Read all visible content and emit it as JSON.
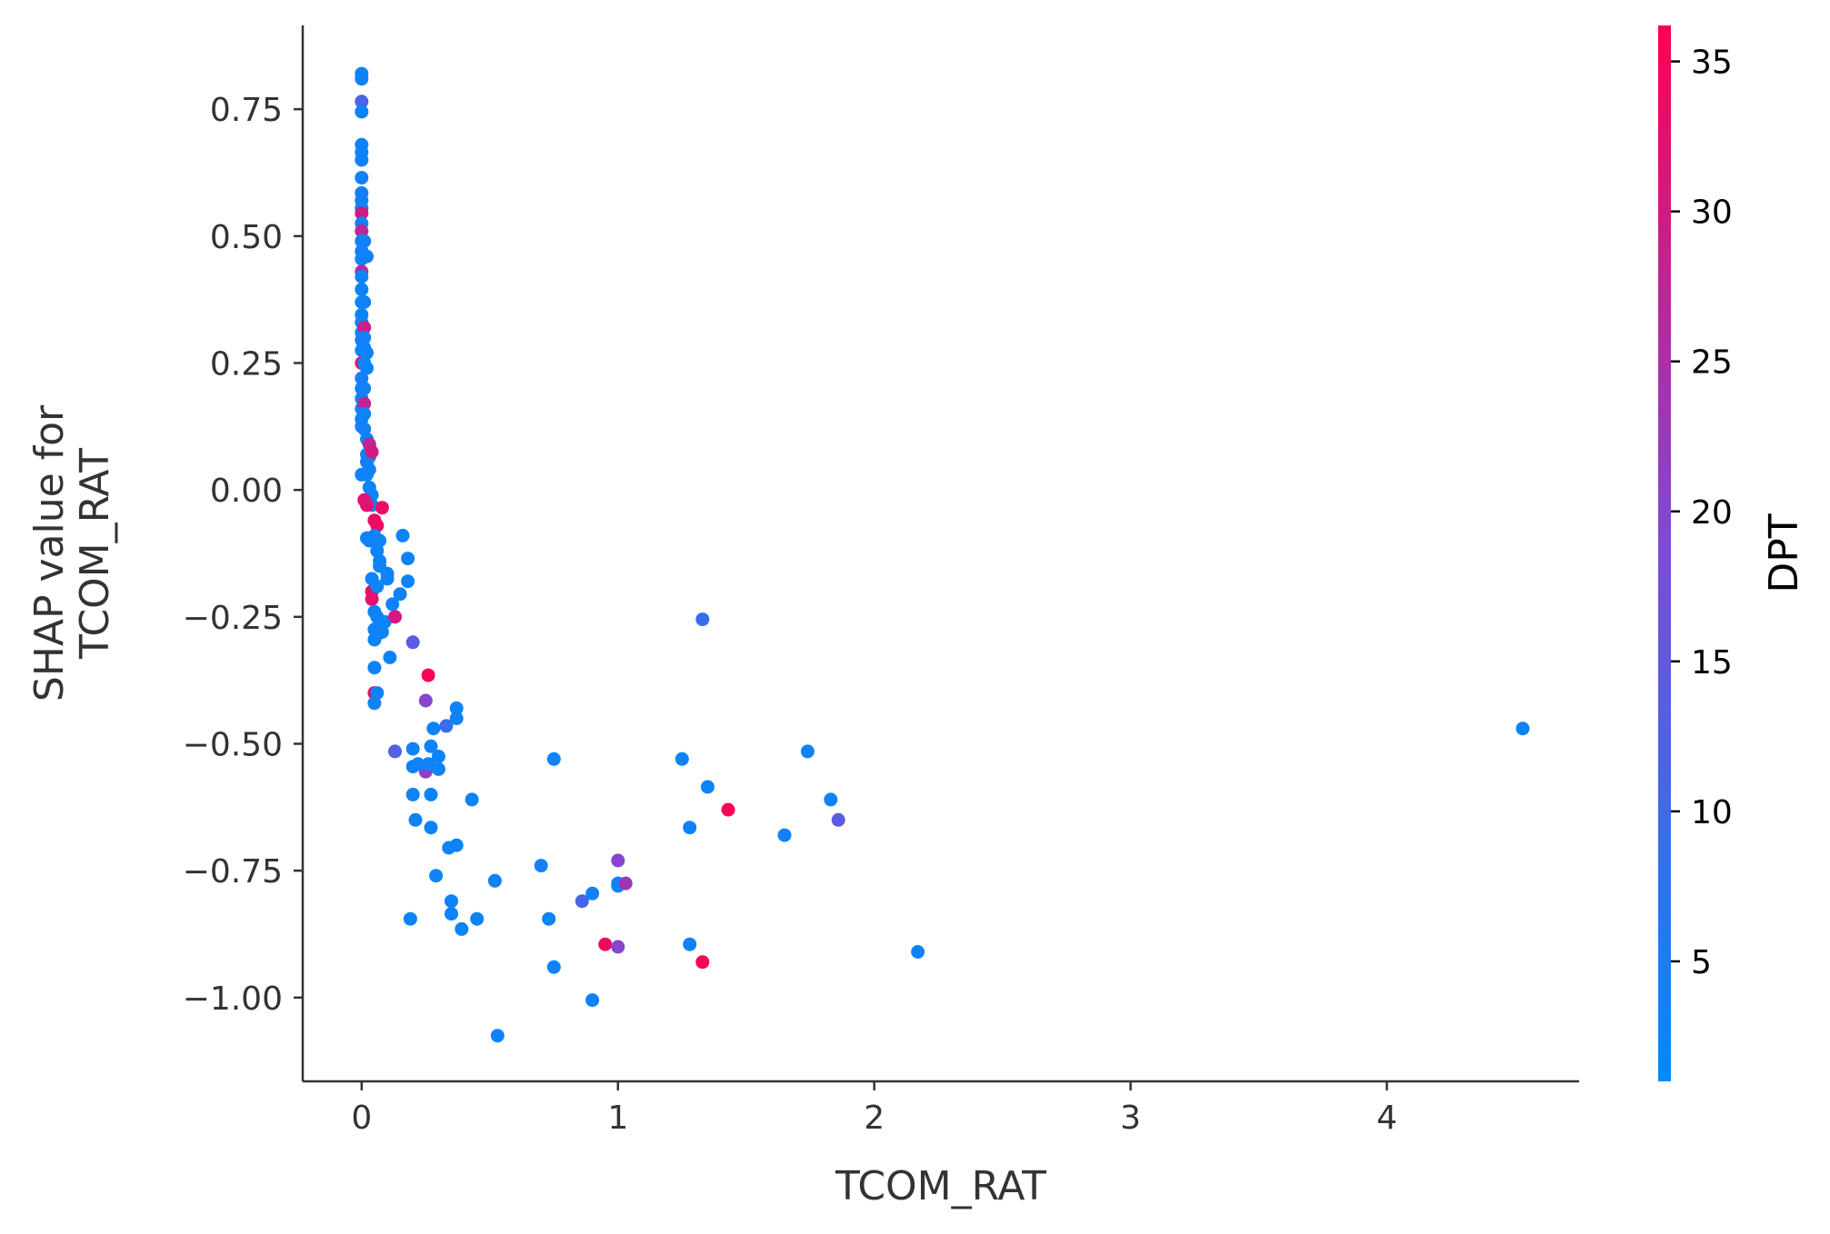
{
  "chart_data": {
    "type": "scatter",
    "xlabel": "TCOM_RAT",
    "ylabel_lines": [
      "SHAP value for",
      "TCOM_RAT"
    ],
    "colorbar_label": "DPT",
    "xlim": [
      -0.23,
      4.75
    ],
    "ylim": [
      -1.165,
      0.915
    ],
    "xticks": [
      0,
      1,
      2,
      3,
      4
    ],
    "yticks": [
      -1.0,
      -0.75,
      -0.5,
      -0.25,
      0.0,
      0.25,
      0.5,
      0.75
    ],
    "ytick_labels": [
      "−1.00",
      "−0.75",
      "−0.50",
      "−0.25",
      "0.00",
      "0.25",
      "0.50",
      "0.75"
    ],
    "colorbar_range": [
      1,
      36.2
    ],
    "colorbar_ticks": [
      5,
      10,
      15,
      20,
      25,
      30,
      35
    ],
    "colormap": [
      "#008afb",
      "#7b4bd8",
      "#ff0052"
    ],
    "points": [
      [
        0.0,
        0.82,
        3
      ],
      [
        0.0,
        0.81,
        3
      ],
      [
        0.0,
        0.765,
        12
      ],
      [
        0.0,
        0.745,
        3
      ],
      [
        0.0,
        0.68,
        3
      ],
      [
        0.0,
        0.665,
        3
      ],
      [
        0.0,
        0.65,
        3
      ],
      [
        0.0,
        0.615,
        4
      ],
      [
        0.0,
        0.585,
        4
      ],
      [
        0.0,
        0.57,
        3
      ],
      [
        0.0,
        0.555,
        3
      ],
      [
        0.0,
        0.545,
        30
      ],
      [
        0.0,
        0.525,
        3
      ],
      [
        0.0,
        0.51,
        27
      ],
      [
        0.0,
        0.49,
        3
      ],
      [
        0.0,
        0.47,
        4
      ],
      [
        0.0,
        0.455,
        3
      ],
      [
        0.0,
        0.43,
        25
      ],
      [
        0.0,
        0.42,
        3
      ],
      [
        0.0,
        0.395,
        3
      ],
      [
        0.0,
        0.37,
        3
      ],
      [
        0.0,
        0.345,
        3
      ],
      [
        0.0,
        0.33,
        3
      ],
      [
        0.0,
        0.31,
        3
      ],
      [
        0.0,
        0.295,
        4
      ],
      [
        0.0,
        0.275,
        3
      ],
      [
        0.0,
        0.25,
        33
      ],
      [
        0.0,
        0.22,
        4
      ],
      [
        0.0,
        0.2,
        3
      ],
      [
        0.0,
        0.18,
        3
      ],
      [
        0.0,
        0.16,
        3
      ],
      [
        0.0,
        0.14,
        4
      ],
      [
        0.0,
        0.125,
        3
      ],
      [
        0.01,
        0.49,
        4
      ],
      [
        0.01,
        0.46,
        3
      ],
      [
        0.01,
        0.37,
        3
      ],
      [
        0.01,
        0.32,
        29
      ],
      [
        0.01,
        0.3,
        4
      ],
      [
        0.01,
        0.28,
        3
      ],
      [
        0.01,
        0.25,
        3
      ],
      [
        0.01,
        0.2,
        4
      ],
      [
        0.01,
        0.17,
        28
      ],
      [
        0.01,
        0.15,
        3
      ],
      [
        0.01,
        0.12,
        4
      ],
      [
        0.02,
        0.46,
        3
      ],
      [
        0.02,
        0.27,
        3
      ],
      [
        0.02,
        0.24,
        3
      ],
      [
        0.02,
        0.1,
        3
      ],
      [
        0.02,
        0.07,
        3
      ],
      [
        0.02,
        0.055,
        5
      ],
      [
        0.0,
        0.03,
        3
      ],
      [
        0.02,
        0.03,
        3
      ],
      [
        0.03,
        0.09,
        27
      ],
      [
        0.03,
        0.065,
        4
      ],
      [
        0.03,
        0.04,
        3
      ],
      [
        0.03,
        0.005,
        3
      ],
      [
        0.04,
        0.075,
        30
      ],
      [
        0.04,
        -0.01,
        3
      ],
      [
        0.04,
        -0.03,
        4
      ],
      [
        0.03,
        -0.1,
        3
      ],
      [
        0.02,
        -0.095,
        3
      ],
      [
        0.01,
        -0.02,
        32
      ],
      [
        0.02,
        -0.03,
        32
      ],
      [
        0.05,
        -0.06,
        33
      ],
      [
        0.06,
        -0.07,
        34
      ],
      [
        0.08,
        -0.035,
        34
      ],
      [
        0.05,
        -0.09,
        3
      ],
      [
        0.06,
        -0.12,
        3
      ],
      [
        0.07,
        -0.1,
        3
      ],
      [
        0.07,
        -0.14,
        3
      ],
      [
        0.07,
        -0.15,
        3
      ],
      [
        0.04,
        -0.175,
        3
      ],
      [
        0.04,
        -0.2,
        33
      ],
      [
        0.04,
        -0.215,
        32
      ],
      [
        0.1,
        -0.165,
        3
      ],
      [
        0.1,
        -0.175,
        3
      ],
      [
        0.06,
        -0.19,
        3
      ],
      [
        0.12,
        -0.225,
        3
      ],
      [
        0.05,
        -0.24,
        3
      ],
      [
        0.06,
        -0.25,
        3
      ],
      [
        0.07,
        -0.265,
        3
      ],
      [
        0.09,
        -0.26,
        3
      ],
      [
        0.13,
        -0.25,
        30
      ],
      [
        0.05,
        -0.275,
        3
      ],
      [
        0.06,
        -0.285,
        3
      ],
      [
        0.08,
        -0.28,
        3
      ],
      [
        0.05,
        -0.295,
        3
      ],
      [
        0.05,
        -0.35,
        3
      ],
      [
        0.11,
        -0.33,
        3
      ],
      [
        0.05,
        -0.4,
        33
      ],
      [
        0.06,
        -0.4,
        3
      ],
      [
        0.05,
        -0.42,
        3
      ],
      [
        0.16,
        -0.09,
        3
      ],
      [
        0.18,
        -0.135,
        3
      ],
      [
        0.18,
        -0.18,
        3
      ],
      [
        0.15,
        -0.205,
        3
      ],
      [
        0.2,
        -0.3,
        14
      ],
      [
        0.26,
        -0.365,
        35
      ],
      [
        0.25,
        -0.415,
        20
      ],
      [
        0.25,
        -0.555,
        21
      ],
      [
        0.13,
        -0.515,
        13
      ],
      [
        0.2,
        -0.51,
        3
      ],
      [
        0.2,
        -0.545,
        3
      ],
      [
        0.22,
        -0.54,
        3
      ],
      [
        0.26,
        -0.54,
        3
      ],
      [
        0.28,
        -0.47,
        3
      ],
      [
        0.27,
        -0.505,
        3
      ],
      [
        0.3,
        -0.525,
        3
      ],
      [
        0.3,
        -0.55,
        3
      ],
      [
        0.33,
        -0.465,
        9
      ],
      [
        0.37,
        -0.43,
        3
      ],
      [
        0.37,
        -0.45,
        3
      ],
      [
        0.2,
        -0.6,
        3
      ],
      [
        0.27,
        -0.6,
        3
      ],
      [
        0.21,
        -0.65,
        3
      ],
      [
        0.27,
        -0.665,
        3
      ],
      [
        0.34,
        -0.705,
        3
      ],
      [
        0.37,
        -0.7,
        3
      ],
      [
        0.43,
        -0.61,
        3
      ],
      [
        0.29,
        -0.76,
        3
      ],
      [
        0.19,
        -0.845,
        3
      ],
      [
        0.35,
        -0.81,
        3
      ],
      [
        0.35,
        -0.835,
        3
      ],
      [
        0.39,
        -0.865,
        3
      ],
      [
        0.45,
        -0.845,
        3
      ],
      [
        0.52,
        -0.77,
        3
      ],
      [
        0.53,
        -1.075,
        3
      ],
      [
        0.7,
        -0.74,
        4
      ],
      [
        0.73,
        -0.845,
        3
      ],
      [
        0.75,
        -0.53,
        3
      ],
      [
        0.75,
        -0.94,
        3
      ],
      [
        0.86,
        -0.81,
        11
      ],
      [
        0.9,
        -0.795,
        3
      ],
      [
        0.9,
        -1.005,
        3
      ],
      [
        0.95,
        -0.895,
        34
      ],
      [
        1.0,
        -0.73,
        20
      ],
      [
        1.0,
        -0.78,
        3
      ],
      [
        1.0,
        -0.775,
        4
      ],
      [
        1.0,
        -0.9,
        20
      ],
      [
        1.03,
        -0.775,
        23
      ],
      [
        1.25,
        -0.53,
        3
      ],
      [
        1.28,
        -0.665,
        3
      ],
      [
        1.28,
        -0.895,
        3
      ],
      [
        1.33,
        -0.93,
        35
      ],
      [
        1.33,
        -0.255,
        9
      ],
      [
        1.35,
        -0.585,
        3
      ],
      [
        1.43,
        -0.63,
        35
      ],
      [
        1.65,
        -0.68,
        3
      ],
      [
        1.74,
        -0.515,
        3
      ],
      [
        1.83,
        -0.61,
        3
      ],
      [
        1.86,
        -0.65,
        14
      ],
      [
        2.17,
        -0.91,
        3
      ],
      [
        4.53,
        -0.47,
        3
      ]
    ]
  }
}
